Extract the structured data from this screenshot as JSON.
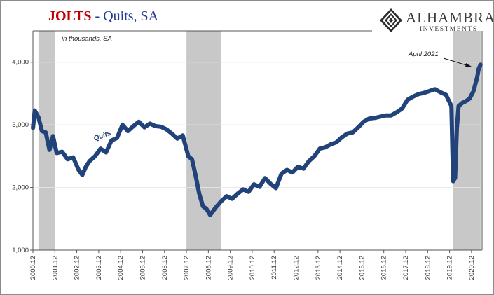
{
  "header": {
    "title_main": "JOLTS",
    "title_sub": " - Quits, SA",
    "brand_name": "ALHAMBRA",
    "brand_sub": "INVESTMENTS"
  },
  "chart_data": {
    "type": "line",
    "units_note": "in thousands, SA",
    "series_label": "Quits",
    "annotation": "April 2021",
    "ylim": [
      1000,
      4500
    ],
    "yticks": [
      1000,
      2000,
      3000,
      4000
    ],
    "ytick_labels": [
      "1,000",
      "2,000",
      "3,000",
      "4,000"
    ],
    "xlim": [
      2000.917,
      2021.4
    ],
    "xtick_labels": [
      "2000.12",
      "2001.12",
      "2002.12",
      "2003.12",
      "2004.12",
      "2005.12",
      "2006.12",
      "2007.12",
      "2008.12",
      "2009.12",
      "2010.12",
      "2011.12",
      "2012.12",
      "2013.12",
      "2014.12",
      "2015.12",
      "2016.12",
      "2017.12",
      "2018.12",
      "2019.12",
      "2020.12"
    ],
    "recessions": [
      [
        2001.17,
        2001.92
      ],
      [
        2007.92,
        2009.5
      ],
      [
        2020.08,
        2021.33
      ]
    ],
    "line_color": "#22427a",
    "recession_color": "#c8c8c8",
    "series": [
      {
        "x": [
          2000.92,
          2001.0,
          2001.17,
          2001.33,
          2001.5,
          2001.67,
          2001.83,
          2002.0,
          2002.25,
          2002.5,
          2002.75,
          2003.0,
          2003.17,
          2003.33,
          2003.5,
          2003.75,
          2004.0,
          2004.25,
          2004.5,
          2004.75,
          2005.0,
          2005.25,
          2005.5,
          2005.75,
          2006.0,
          2006.25,
          2006.5,
          2006.75,
          2007.0,
          2007.25,
          2007.5,
          2007.75,
          2008.0,
          2008.17,
          2008.33,
          2008.5,
          2008.67,
          2008.83,
          2009.0,
          2009.25,
          2009.5,
          2009.75,
          2010.0,
          2010.25,
          2010.5,
          2010.75,
          2011.0,
          2011.25,
          2011.5,
          2011.75,
          2012.0,
          2012.25,
          2012.5,
          2012.75,
          2013.0,
          2013.25,
          2013.5,
          2013.75,
          2014.0,
          2014.25,
          2014.5,
          2014.75,
          2015.0,
          2015.25,
          2015.5,
          2015.75,
          2016.0,
          2016.25,
          2016.5,
          2016.75,
          2017.0,
          2017.25,
          2017.5,
          2017.75,
          2018.0,
          2018.25,
          2018.5,
          2018.75,
          2019.0,
          2019.25,
          2019.5,
          2019.75,
          2020.0,
          2020.08,
          2020.17,
          2020.25,
          2020.33,
          2020.5,
          2020.67,
          2020.83,
          2021.0,
          2021.17,
          2021.25,
          2021.33
        ],
        "values": [
          2950,
          3230,
          3120,
          2900,
          2880,
          2600,
          2820,
          2550,
          2570,
          2450,
          2480,
          2280,
          2200,
          2330,
          2420,
          2500,
          2620,
          2560,
          2750,
          2790,
          3000,
          2900,
          2980,
          3050,
          2960,
          3020,
          2980,
          2970,
          2930,
          2860,
          2780,
          2830,
          2500,
          2450,
          2200,
          1900,
          1700,
          1660,
          1560,
          1680,
          1780,
          1860,
          1820,
          1900,
          1970,
          1930,
          2050,
          2010,
          2150,
          2060,
          1990,
          2220,
          2280,
          2240,
          2330,
          2300,
          2420,
          2500,
          2620,
          2640,
          2690,
          2720,
          2800,
          2860,
          2880,
          2960,
          3050,
          3100,
          3110,
          3130,
          3150,
          3150,
          3200,
          3260,
          3400,
          3450,
          3490,
          3510,
          3540,
          3570,
          3520,
          3480,
          3300,
          2100,
          2150,
          2950,
          3300,
          3350,
          3380,
          3420,
          3530,
          3750,
          3900,
          3960
        ]
      }
    ]
  }
}
